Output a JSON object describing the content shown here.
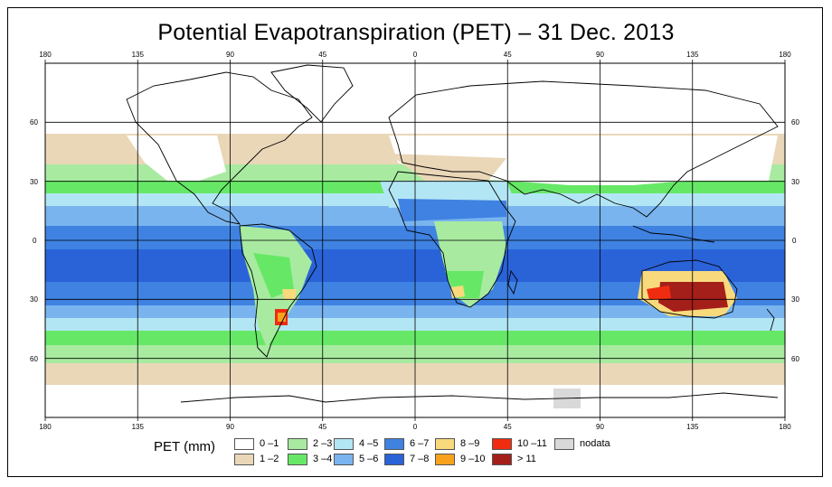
{
  "title": "Potential Evapotranspiration (PET) – 31 Dec. 2013",
  "axes": {
    "top_lon_ticks": [
      "180",
      "135",
      "90",
      "45",
      "0",
      "45",
      "90",
      "135",
      "180"
    ],
    "bottom_lon_ticks": [
      "180",
      "135",
      "90",
      "45",
      "0",
      "45",
      "90",
      "135",
      "180"
    ],
    "left_lat_ticks": [
      "60",
      "30",
      "0",
      "30",
      "60"
    ],
    "right_lat_ticks": [
      "60",
      "30",
      "0",
      "30",
      "60"
    ]
  },
  "legend": {
    "title": "PET (mm)",
    "items": [
      {
        "label": "0 –1",
        "color": "#ffffff"
      },
      {
        "label": "1 –2",
        "color": "#ead7b8"
      },
      {
        "label": "2 –3",
        "color": "#a8eba0"
      },
      {
        "label": "3 –4",
        "color": "#66e866"
      },
      {
        "label": "4 –5",
        "color": "#b3e6f5"
      },
      {
        "label": "5 –6",
        "color": "#79b4ee"
      },
      {
        "label": "6 –7",
        "color": "#3f82e2"
      },
      {
        "label": "7 –8",
        "color": "#2a62d8"
      },
      {
        "label": "8 –9",
        "color": "#f8da7c"
      },
      {
        "label": "9 –10",
        "color": "#f8a21c"
      },
      {
        "label": "10 –11",
        "color": "#f02c10"
      },
      {
        "label": "> 11",
        "color": "#a51f1a"
      },
      {
        "label": "nodata",
        "color": "#d9d9d9"
      }
    ]
  }
}
